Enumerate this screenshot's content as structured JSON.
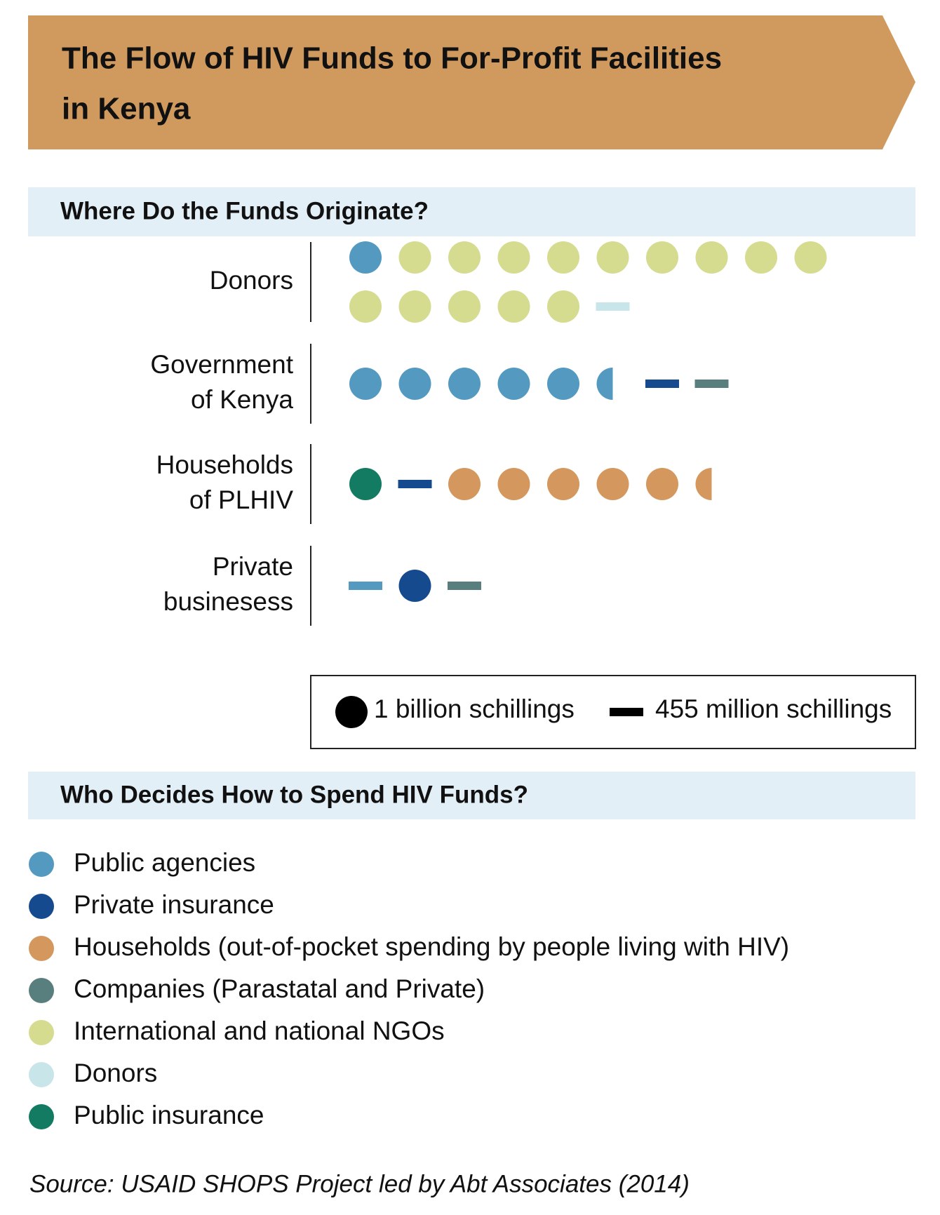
{
  "chart_data": {
    "type": "pictogram",
    "title": [
      "The Flow of HIV Funds to For-Profit Facilities",
      "in Kenya"
    ],
    "section_titles": [
      "Where Do the Funds Originate?",
      "Who Decides How to Spend HIV Funds?"
    ],
    "unit_labels": {
      "dot": "1 billion schillings",
      "dash": "455 million schillings"
    },
    "keys": [
      {
        "name": "Public agencies",
        "color": "#5499c0"
      },
      {
        "name": "Private insurance",
        "color": "#164a8e"
      },
      {
        "name": "Households (out-of-pocket spending by people living with HIV)",
        "color": "#d4975d"
      },
      {
        "name": "Companies (Parastatal and Private)",
        "color": "#587e7e"
      },
      {
        "name": "International and national NGOs",
        "color": "#d5dc90"
      },
      {
        "name": "Donors",
        "color": "#c8e5ea"
      },
      {
        "name": "Public insurance",
        "color": "#137b62"
      }
    ],
    "rows": [
      {
        "label": [
          "Donors"
        ],
        "items": [
          {
            "key": 0,
            "dots": 1
          },
          {
            "key": 4,
            "dots": 14
          },
          {
            "key": 5,
            "dashes": 1
          }
        ]
      },
      {
        "label": [
          "Government",
          "of Kenya"
        ],
        "items": [
          {
            "key": 0,
            "dots": 5.5
          },
          {
            "key": 1,
            "dashes": 1
          },
          {
            "key": 3,
            "dashes": 1
          }
        ]
      },
      {
        "label": [
          "Households",
          "of PLHIV"
        ],
        "items": [
          {
            "key": 6,
            "dots": 1
          },
          {
            "key": 1,
            "dashes": 1
          },
          {
            "key": 2,
            "dots": 5.5
          }
        ]
      },
      {
        "label": [
          "Private",
          "businesess"
        ],
        "items": [
          {
            "key": 0,
            "dashes": 1
          },
          {
            "key": 1,
            "dots": 1
          },
          {
            "key": 3,
            "dashes": 1
          }
        ]
      }
    ],
    "source": "Source: USAID SHOPS Project led by Abt Associates (2014)"
  }
}
